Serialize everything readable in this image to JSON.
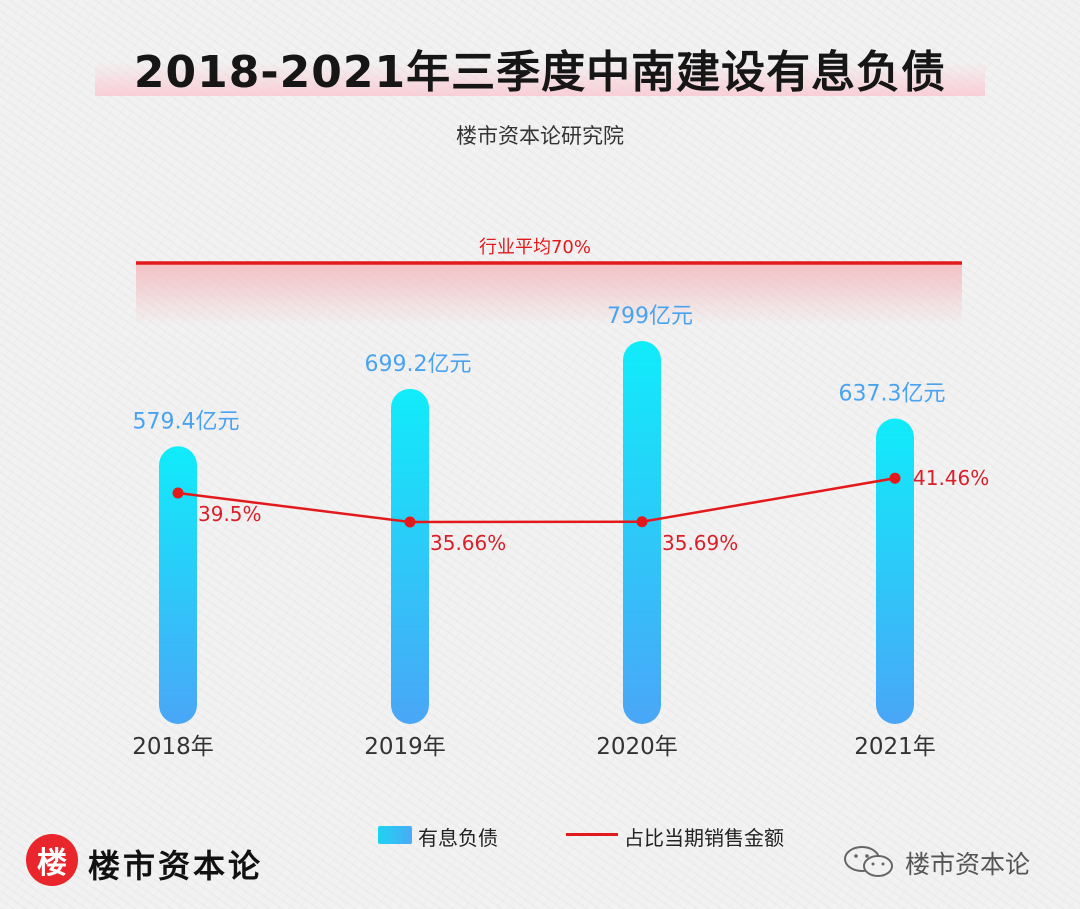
{
  "title": "2018-2021年三季度中南建设有息负债",
  "subtitle": "楼市资本论研究院",
  "chart_data": {
    "type": "bar",
    "categories": [
      "2018年",
      "2019年",
      "2020年",
      "2021年"
    ],
    "series": [
      {
        "name": "有息负债",
        "type": "bar",
        "values": [
          579.4,
          699.2,
          799,
          637.3
        ],
        "labels": [
          "579.4亿元",
          "699.2亿元",
          "799亿元",
          "637.3亿元"
        ],
        "color_top": "#10ecfa",
        "color_bottom": "#4aa6f7"
      },
      {
        "name": "占比当期销售金额",
        "type": "line",
        "values": [
          39.5,
          35.66,
          35.69,
          41.46
        ],
        "labels": [
          "39.5%",
          "35.66%",
          "35.69%",
          "41.46%"
        ],
        "color": "#e31a1c"
      }
    ],
    "reference_line": {
      "label": "行业平均70%",
      "value": 70,
      "color": "#e31a1c"
    },
    "bar_color_label": "#4aa3f0",
    "line_label_color": "#d9202a"
  },
  "legend": {
    "bar_label": "有息负债",
    "line_label": "占比当期销售金额"
  },
  "logo": {
    "badge": "楼",
    "text": "楼市资本论"
  },
  "watermark": {
    "text": "楼市资本论",
    "icon": "wechat-icon"
  }
}
